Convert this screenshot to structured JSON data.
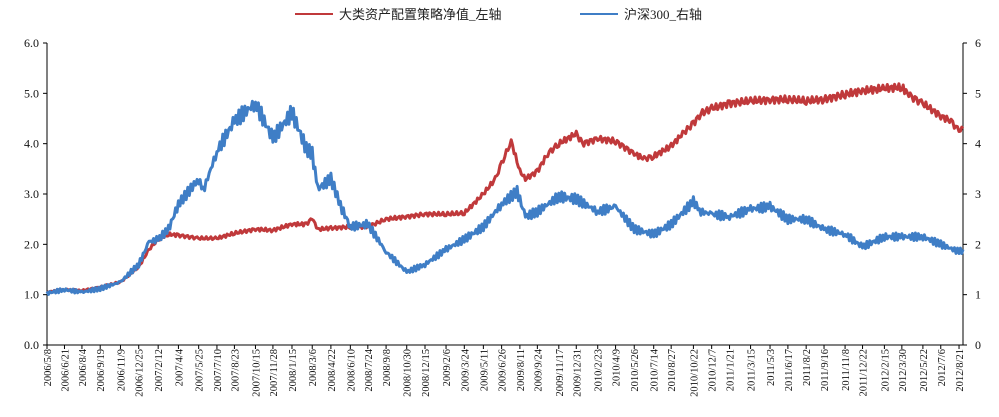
{
  "chart_data": {
    "type": "line",
    "title": "",
    "legend_position": "top-center",
    "grid": false,
    "x_tick_labels": [
      "2006/5/8",
      "2006/6/21",
      "2006/8/4",
      "2006/9/19",
      "2006/11/9",
      "2006/12/25",
      "2007/2/12",
      "2007/4/4",
      "2007/5/25",
      "2007/7/10",
      "2007/8/23",
      "2007/10/15",
      "2007/11/28",
      "2008/1/15",
      "2008/3/6",
      "2008/4/22",
      "2008/6/10",
      "2008/7/24",
      "2008/9/8",
      "2008/10/30",
      "2008/12/15",
      "2009/2/6",
      "2009/3/24",
      "2009/5/11",
      "2009/6/26",
      "2009/8/11",
      "2009/9/24",
      "2009/11/17",
      "2009/12/31",
      "2010/2/23",
      "2010/4/9",
      "2010/5/26",
      "2010/7/14",
      "2010/8/27",
      "2010/10/22",
      "2010/12/7",
      "2011/1/21",
      "2011/3/15",
      "2011/5/3",
      "2011/6/17",
      "2011/8/2",
      "2011/9/16",
      "2011/11/8",
      "2011/12/22",
      "2012/2/15",
      "2012/3/30",
      "2012/5/22",
      "2012/7/6",
      "2012/8/21"
    ],
    "left_axis": {
      "ylim": [
        0,
        6
      ],
      "ticks": [
        "0.0",
        "1.0",
        "2.0",
        "3.0",
        "4.0",
        "5.0",
        "6.0"
      ]
    },
    "right_axis": {
      "ylim": [
        0,
        6
      ],
      "ticks": [
        "0",
        "1",
        "2",
        "3",
        "4",
        "5",
        "6"
      ]
    },
    "series": [
      {
        "name": "大类资产配置策略净值_左轴",
        "axis": "left",
        "color": "#c0393b",
        "x": [
          "2006/5/8",
          "2006/6/21",
          "2006/8/4",
          "2006/9/19",
          "2006/11/9",
          "2006/12/25",
          "2007/1/20",
          "2007/2/12",
          "2007/3/10",
          "2007/4/4",
          "2007/5/25",
          "2007/7/10",
          "2007/8/23",
          "2007/10/15",
          "2007/11/28",
          "2008/1/15",
          "2008/2/20",
          "2008/3/6",
          "2008/3/20",
          "2008/4/22",
          "2008/6/10",
          "2008/7/24",
          "2008/9/8",
          "2008/10/30",
          "2008/12/15",
          "2009/2/6",
          "2009/3/24",
          "2009/5/11",
          "2009/6/10",
          "2009/6/26",
          "2009/7/20",
          "2009/8/11",
          "2009/8/25",
          "2009/9/24",
          "2009/10/20",
          "2009/11/17",
          "2009/12/31",
          "2010/1/15",
          "2010/2/23",
          "2010/4/9",
          "2010/5/26",
          "2010/6/20",
          "2010/7/14",
          "2010/8/27",
          "2010/9/25",
          "2010/10/22",
          "2010/11/10",
          "2010/12/7",
          "2011/1/21",
          "2011/3/15",
          "2011/5/3",
          "2011/6/17",
          "2011/8/2",
          "2011/9/16",
          "2011/11/8",
          "2011/12/22",
          "2012/2/15",
          "2012/3/30",
          "2012/4/20",
          "2012/5/22",
          "2012/7/6",
          "2012/8/1",
          "2012/8/21",
          "2012/8/31"
        ],
        "values": [
          1.05,
          1.1,
          1.08,
          1.15,
          1.25,
          1.55,
          1.9,
          2.1,
          2.2,
          2.18,
          2.12,
          2.12,
          2.22,
          2.3,
          2.28,
          2.4,
          2.4,
          2.52,
          2.3,
          2.32,
          2.35,
          2.35,
          2.5,
          2.55,
          2.6,
          2.6,
          2.62,
          3.0,
          3.3,
          3.6,
          4.05,
          3.45,
          3.3,
          3.45,
          3.8,
          4.0,
          4.2,
          4.0,
          4.1,
          4.05,
          3.8,
          3.7,
          3.75,
          3.95,
          4.2,
          4.4,
          4.6,
          4.7,
          4.8,
          4.85,
          4.87,
          4.88,
          4.85,
          4.88,
          4.98,
          5.05,
          5.1,
          5.12,
          4.95,
          4.8,
          4.55,
          4.45,
          4.25,
          4.3
        ]
      },
      {
        "name": "沪深300_右轴",
        "axis": "right",
        "color": "#3f7ec6",
        "x": [
          "2006/5/8",
          "2006/6/21",
          "2006/8/4",
          "2006/9/19",
          "2006/11/9",
          "2006/12/25",
          "2007/1/20",
          "2007/2/12",
          "2007/3/10",
          "2007/4/4",
          "2007/5/25",
          "2007/6/5",
          "2007/7/10",
          "2007/8/23",
          "2007/10/15",
          "2007/11/28",
          "2008/1/15",
          "2008/2/20",
          "2008/3/6",
          "2008/3/20",
          "2008/4/22",
          "2008/5/20",
          "2008/6/10",
          "2008/7/24",
          "2008/9/8",
          "2008/10/30",
          "2008/12/15",
          "2009/2/6",
          "2009/3/24",
          "2009/5/11",
          "2009/6/26",
          "2009/8/4",
          "2009/8/25",
          "2009/9/24",
          "2009/11/17",
          "2009/12/31",
          "2010/2/23",
          "2010/4/9",
          "2010/5/26",
          "2010/7/14",
          "2010/8/27",
          "2010/10/22",
          "2010/11/10",
          "2010/12/7",
          "2011/1/21",
          "2011/3/15",
          "2011/5/3",
          "2011/6/17",
          "2011/8/2",
          "2011/9/16",
          "2011/11/8",
          "2011/12/22",
          "2012/2/15",
          "2012/3/30",
          "2012/5/22",
          "2012/7/6",
          "2012/8/21",
          "2012/8/31"
        ],
        "values": [
          1.03,
          1.1,
          1.05,
          1.12,
          1.25,
          1.6,
          2.05,
          2.1,
          2.3,
          2.8,
          3.3,
          3.05,
          3.85,
          4.45,
          4.8,
          4.1,
          4.62,
          3.9,
          3.8,
          3.1,
          3.3,
          2.7,
          2.35,
          2.4,
          1.85,
          1.45,
          1.6,
          1.9,
          2.1,
          2.35,
          2.8,
          3.05,
          2.55,
          2.65,
          2.95,
          2.9,
          2.65,
          2.75,
          2.3,
          2.2,
          2.4,
          2.85,
          2.65,
          2.6,
          2.55,
          2.7,
          2.75,
          2.5,
          2.5,
          2.3,
          2.2,
          1.95,
          2.15,
          2.15,
          2.15,
          2.0,
          1.85,
          1.9
        ]
      }
    ]
  }
}
